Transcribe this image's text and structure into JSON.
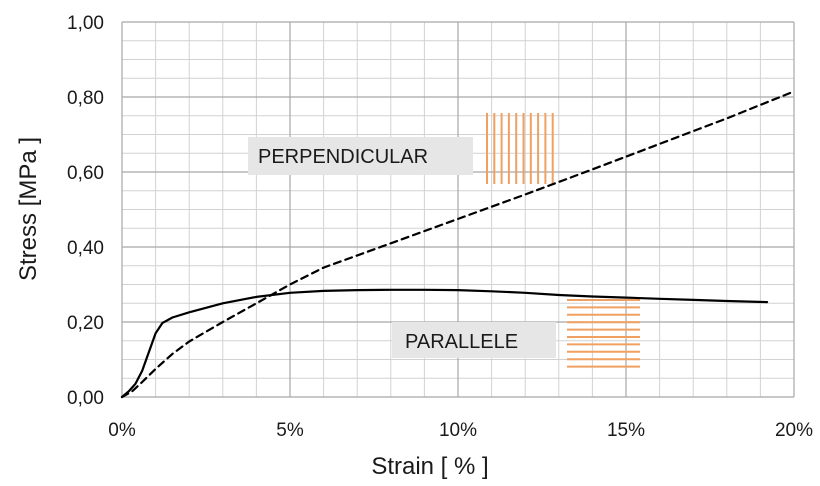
{
  "chart_data": {
    "type": "line",
    "xlabel": "Strain   [ % ]",
    "ylabel": "Stress  [MPa ]",
    "xlim": [
      0,
      20
    ],
    "ylim": [
      0,
      1.0
    ],
    "x_ticks": [
      "0%",
      "5%",
      "10%",
      "15%",
      "20%"
    ],
    "y_ticks": [
      "0,00",
      "0,20",
      "0,40",
      "0,60",
      "0,80",
      "1,00"
    ],
    "grid": true,
    "series": [
      {
        "name": "PARALLELE",
        "style": "solid",
        "color": "#000000",
        "points": [
          [
            0.0,
            0.0
          ],
          [
            0.2,
            0.015
          ],
          [
            0.4,
            0.035
          ],
          [
            0.6,
            0.07
          ],
          [
            0.8,
            0.12
          ],
          [
            1.0,
            0.17
          ],
          [
            1.2,
            0.197
          ],
          [
            1.5,
            0.212
          ],
          [
            2.0,
            0.226
          ],
          [
            3.0,
            0.25
          ],
          [
            4.0,
            0.267
          ],
          [
            5.0,
            0.278
          ],
          [
            6.0,
            0.283
          ],
          [
            7.0,
            0.285
          ],
          [
            8.0,
            0.286
          ],
          [
            9.0,
            0.286
          ],
          [
            10.0,
            0.285
          ],
          [
            11.0,
            0.282
          ],
          [
            12.0,
            0.278
          ],
          [
            13.0,
            0.272
          ],
          [
            14.0,
            0.268
          ],
          [
            15.0,
            0.265
          ],
          [
            16.0,
            0.262
          ],
          [
            17.0,
            0.259
          ],
          [
            18.0,
            0.256
          ],
          [
            19.2,
            0.253
          ]
        ]
      },
      {
        "name": "PERPENDICULAR",
        "style": "dashed",
        "color": "#000000",
        "points": [
          [
            0.0,
            0.0
          ],
          [
            0.3,
            0.015
          ],
          [
            0.6,
            0.04
          ],
          [
            1.0,
            0.075
          ],
          [
            1.5,
            0.115
          ],
          [
            2.0,
            0.148
          ],
          [
            3.0,
            0.2
          ],
          [
            4.0,
            0.25
          ],
          [
            5.0,
            0.3
          ],
          [
            6.0,
            0.345
          ],
          [
            8.0,
            0.41
          ],
          [
            10.0,
            0.475
          ],
          [
            12.0,
            0.54
          ],
          [
            14.0,
            0.607
          ],
          [
            16.0,
            0.675
          ],
          [
            18.0,
            0.743
          ],
          [
            20.0,
            0.815
          ]
        ]
      }
    ],
    "annotations": [
      {
        "text": "PERPENDICULAR",
        "x": 3.8,
        "y": 0.64,
        "marker": "vertical-lines",
        "marker_color": "#f0a060"
      },
      {
        "text": "PARALLELE",
        "x": 8.1,
        "y": 0.15,
        "marker": "horizontal-lines",
        "marker_color": "#f0a060"
      }
    ]
  }
}
